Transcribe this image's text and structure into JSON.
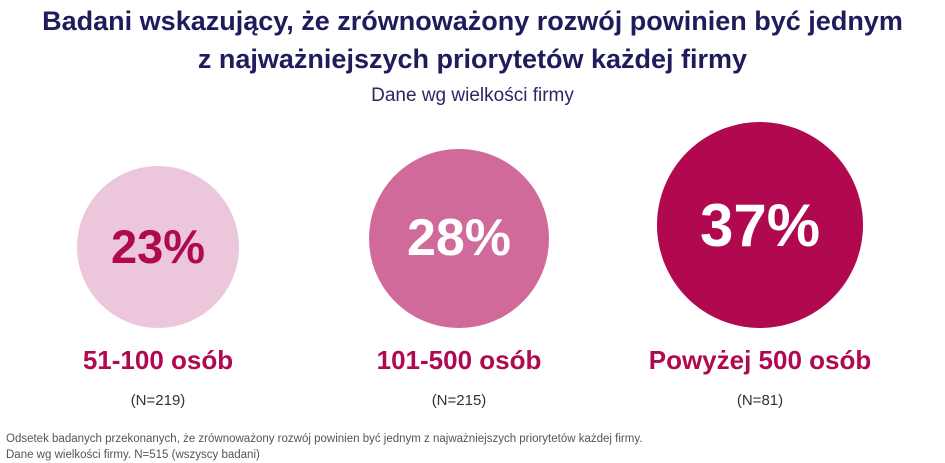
{
  "title_lines": [
    "Badani wskazujący, że zrównoważony rozwój powinien być jednym",
    "z najważniejszych priorytetów każdej firmy"
  ],
  "subtitle": "Dane wg wielkości firmy",
  "chart_data": {
    "type": "bubble",
    "categories": [
      "51-100 osób",
      "101-500 osób",
      "Powyżej 500 osób"
    ],
    "values": [
      23,
      28,
      37
    ],
    "value_labels": [
      "23%",
      "28%",
      "37%"
    ],
    "n_labels": [
      "(N=219)",
      "(N=215)",
      "(N=81)"
    ],
    "colors": {
      "bubbles": [
        "#ecc7dc",
        "#d06a9b",
        "#b0094f"
      ],
      "value_text": [
        "#b0094f",
        "#ffffff",
        "#ffffff"
      ],
      "category_text": "#b0094f"
    }
  },
  "footnote_lines": [
    "Odsetek badanych przekonanych, że zrównoważony rozwój powinien być jednym z najważniejszych priorytetów każdej firmy.",
    "Dane wg wielkości firmy. N=515 (wszyscy badani)"
  ]
}
